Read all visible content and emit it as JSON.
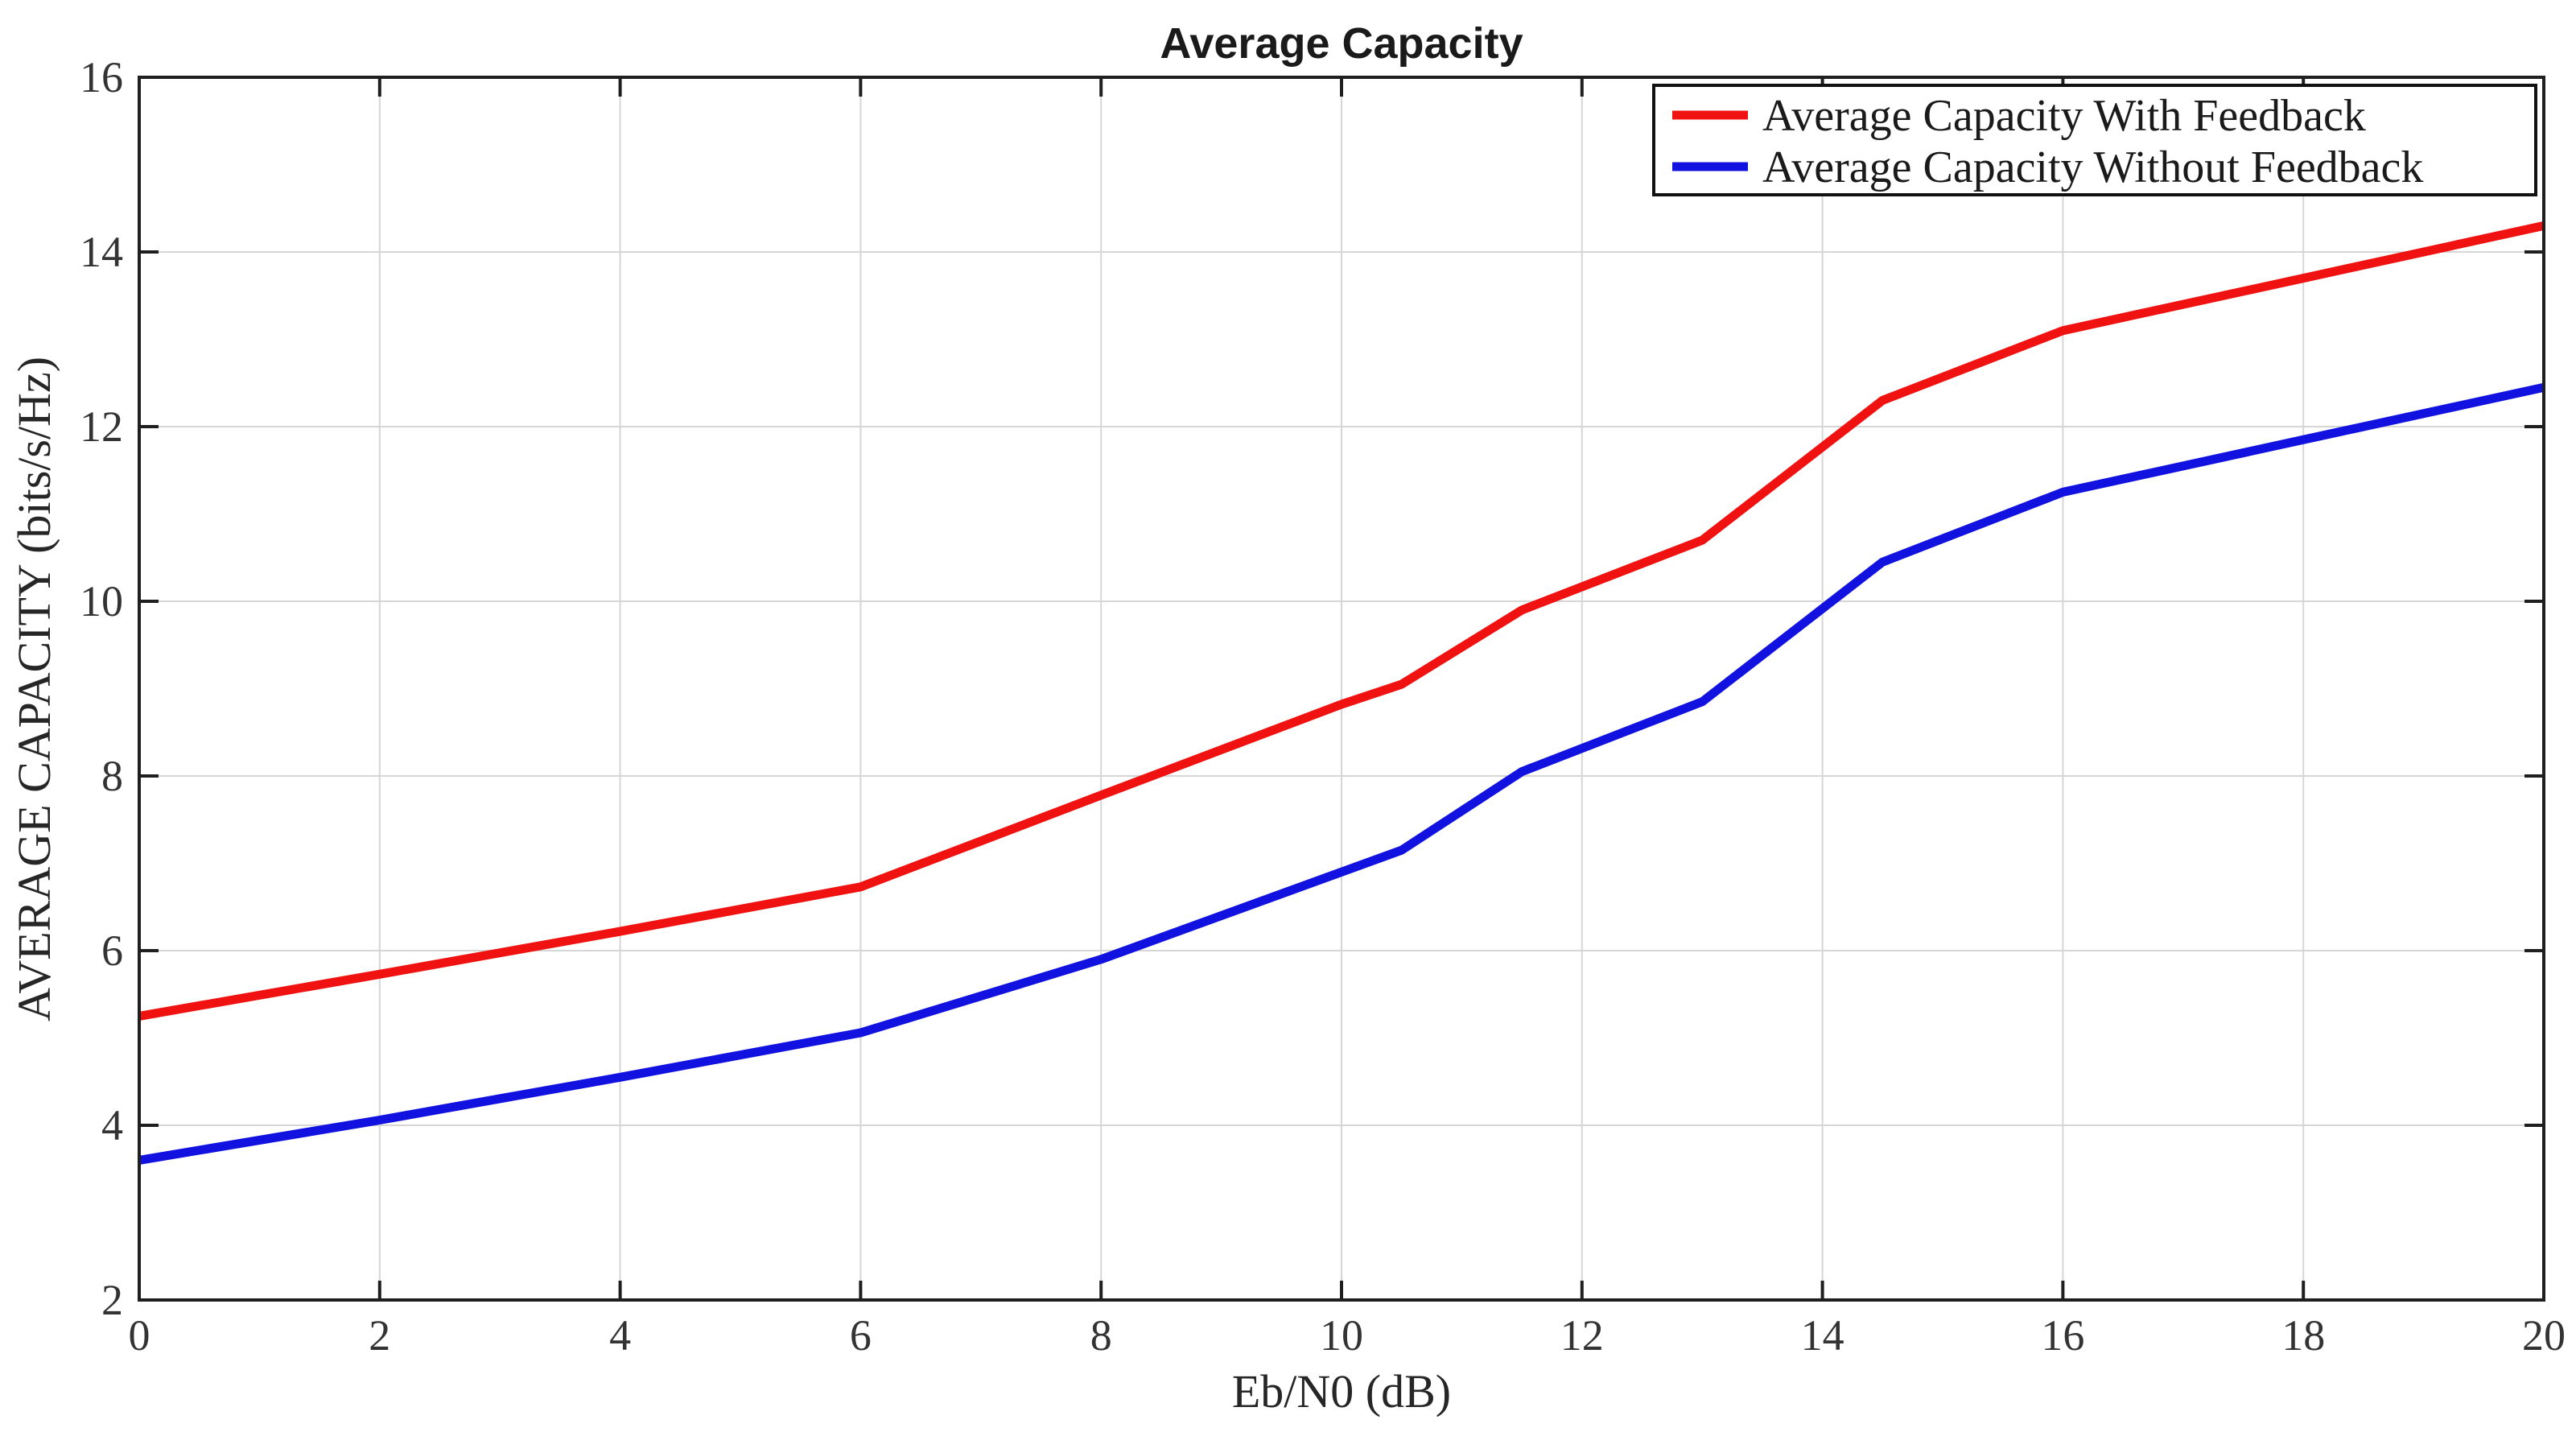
{
  "figure": {
    "background": "#ffffff"
  },
  "chart_data": {
    "type": "line",
    "title": "Average Capacity",
    "xlabel": "Eb/N0 (dB)",
    "ylabel": "AVERAGE CAPACITY (bits/s/Hz)",
    "xlim": [
      0,
      20
    ],
    "ylim": [
      2,
      16
    ],
    "xticks": [
      0,
      2,
      4,
      6,
      8,
      10,
      12,
      14,
      16,
      18,
      20
    ],
    "yticks": [
      2,
      4,
      6,
      8,
      10,
      12,
      14,
      16
    ],
    "grid": true,
    "grid_color": "#d6d6d6",
    "axis_color": "#1f1f1f",
    "legend_position": "top-right",
    "x": [
      0,
      2,
      4,
      6,
      8,
      10,
      10.5,
      11.5,
      13,
      14.5,
      16,
      18,
      20
    ],
    "series": [
      {
        "name": "Average Capacity With Feedback",
        "color": "#f01111",
        "values": [
          5.25,
          5.73,
          6.22,
          6.73,
          7.78,
          8.82,
          9.05,
          9.9,
          10.7,
          12.3,
          13.1,
          13.7,
          14.3
        ]
      },
      {
        "name": "Average Capacity Without Feedback",
        "color": "#1111e0",
        "values": [
          3.6,
          4.06,
          4.55,
          5.06,
          5.9,
          6.9,
          7.15,
          8.05,
          8.85,
          10.45,
          11.25,
          11.85,
          12.45
        ]
      }
    ]
  }
}
